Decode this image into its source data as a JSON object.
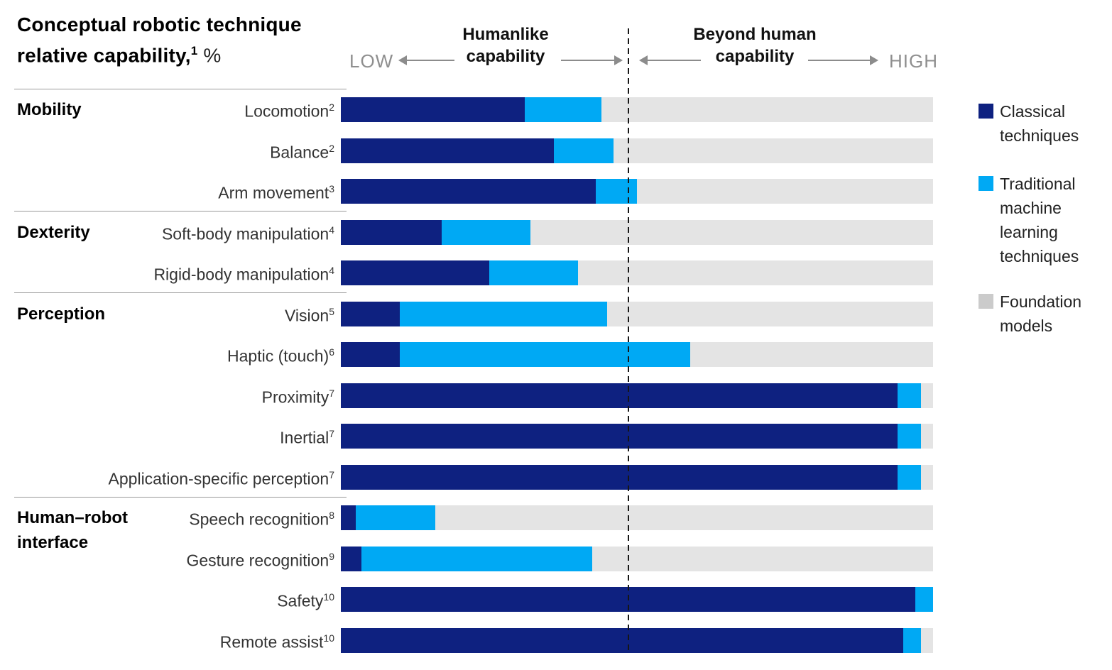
{
  "title": {
    "line1": "Conceptual robotic technique",
    "line2": "relative capability,",
    "footnote": "1",
    "unit": " %"
  },
  "header": {
    "low_label": "LOW",
    "high_label": "HIGH",
    "humanlike_zone": "Humanlike\ncapability",
    "beyond_zone": "Beyond human\ncapability"
  },
  "legend": {
    "items": [
      {
        "key": "classical",
        "label": "Classical techniques",
        "color": "#0e2180"
      },
      {
        "key": "ml",
        "label": "Traditional machine learning techniques",
        "color": "#00a9f4"
      },
      {
        "key": "foundation",
        "label": "Foundation models",
        "color": "#cbcbcb"
      }
    ]
  },
  "colors": {
    "classical": "#0e2180",
    "ml": "#00a9f4",
    "bar_track": "#e4e4e4",
    "legend_foundation_swatch": "#cbcbcb",
    "muted_text": "#8f8f8f",
    "dashed_line": "#161616"
  },
  "chart_data": {
    "type": "bar",
    "orientation": "horizontal",
    "stacked": true,
    "unit": "%",
    "xlim": [
      0,
      100
    ],
    "grid": false,
    "legend_position": "right",
    "series_names": [
      "Classical techniques",
      "Traditional machine learning techniques",
      "Foundation models"
    ],
    "humanlike_beyond_boundary_pct": 47.7,
    "groups": [
      {
        "label": "Mobility",
        "rows": [
          {
            "label": "Locomotion",
            "footnote": "2",
            "classical": 31,
            "ml": 13,
            "foundation": 56
          },
          {
            "label": "Balance",
            "footnote": "2",
            "classical": 36,
            "ml": 10,
            "foundation": 54
          },
          {
            "label": "Arm movement",
            "footnote": "3",
            "classical": 43,
            "ml": 7,
            "foundation": 50
          }
        ]
      },
      {
        "label": "Dexterity",
        "rows": [
          {
            "label": "Soft-body manipulation",
            "footnote": "4",
            "classical": 17,
            "ml": 15,
            "foundation": 68
          },
          {
            "label": "Rigid-body manipulation",
            "footnote": "4",
            "classical": 25,
            "ml": 15,
            "foundation": 60
          }
        ]
      },
      {
        "label": "Perception",
        "rows": [
          {
            "label": "Vision",
            "footnote": "5",
            "classical": 10,
            "ml": 35,
            "foundation": 55
          },
          {
            "label": "Haptic (touch)",
            "footnote": "6",
            "classical": 10,
            "ml": 49,
            "foundation": 41
          },
          {
            "label": "Proximity",
            "footnote": "7",
            "classical": 94,
            "ml": 4,
            "foundation": 2
          },
          {
            "label": "Inertial",
            "footnote": "7",
            "classical": 94,
            "ml": 4,
            "foundation": 2
          },
          {
            "label": "Application-specific perception",
            "footnote": "7",
            "classical": 94,
            "ml": 4,
            "foundation": 2
          }
        ]
      },
      {
        "label": "Human–robot interface",
        "rows": [
          {
            "label": "Speech recognition",
            "footnote": "8",
            "classical": 2.5,
            "ml": 13.5,
            "foundation": 84
          },
          {
            "label": "Gesture recognition",
            "footnote": "9",
            "classical": 3.5,
            "ml": 39,
            "foundation": 57.5
          },
          {
            "label": "Safety",
            "footnote": "10",
            "classical": 97,
            "ml": 3,
            "foundation": 0
          },
          {
            "label": "Remote assist",
            "footnote": "10",
            "classical": 95,
            "ml": 3,
            "foundation": 2
          }
        ]
      }
    ]
  }
}
